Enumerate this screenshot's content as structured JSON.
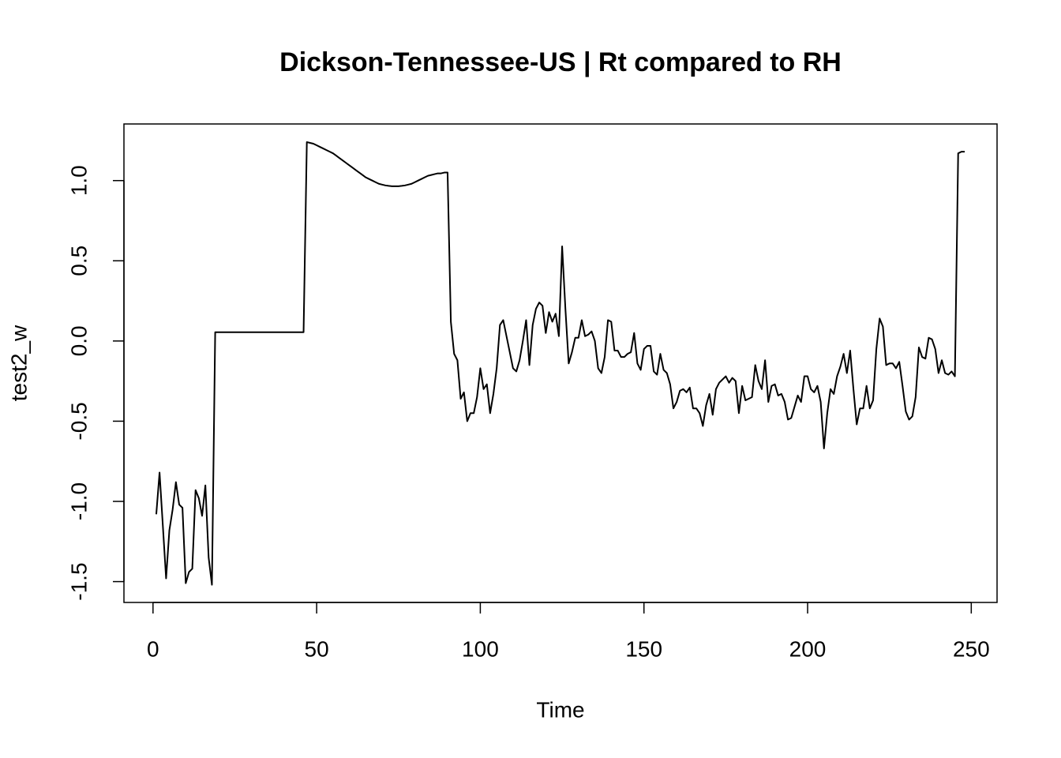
{
  "chart_data": {
    "type": "line",
    "title": "Dickson-Tennessee-US | Rt compared to RH",
    "x_label": "Time",
    "y_label": "test2_w",
    "color": "#000000",
    "x": [
      1,
      2,
      3,
      4,
      5,
      6,
      7,
      8,
      9,
      10,
      11,
      12,
      13,
      14,
      15,
      16,
      17,
      18,
      19,
      20,
      21,
      22,
      23,
      24,
      25,
      26,
      27,
      28,
      29,
      30,
      31,
      32,
      33,
      34,
      35,
      36,
      37,
      38,
      39,
      40,
      41,
      42,
      43,
      44,
      45,
      46,
      47,
      48,
      49,
      50,
      51,
      52,
      53,
      54,
      55,
      56,
      57,
      58,
      59,
      60,
      61,
      62,
      63,
      64,
      65,
      66,
      67,
      68,
      69,
      70,
      71,
      72,
      73,
      74,
      75,
      76,
      77,
      78,
      79,
      80,
      81,
      82,
      83,
      84,
      85,
      86,
      87,
      88,
      89,
      90,
      91,
      92,
      93,
      94,
      95,
      96,
      97,
      98,
      99,
      100,
      101,
      102,
      103,
      104,
      105,
      106,
      107,
      108,
      109,
      110,
      111,
      112,
      113,
      114,
      115,
      116,
      117,
      118,
      119,
      120,
      121,
      122,
      123,
      124,
      125,
      126,
      127,
      128,
      129,
      130,
      131,
      132,
      133,
      134,
      135,
      136,
      137,
      138,
      139,
      140,
      141,
      142,
      143,
      144,
      145,
      146,
      147,
      148,
      149,
      150,
      151,
      152,
      153,
      154,
      155,
      156,
      157,
      158,
      159,
      160,
      161,
      162,
      163,
      164,
      165,
      166,
      167,
      168,
      169,
      170,
      171,
      172,
      173,
      174,
      175,
      176,
      177,
      178,
      179,
      180,
      181,
      182,
      183,
      184,
      185,
      186,
      187,
      188,
      189,
      190,
      191,
      192,
      193,
      194,
      195,
      196,
      197,
      198,
      199,
      200,
      201,
      202,
      203,
      204,
      205,
      206,
      207,
      208,
      209,
      210,
      211,
      212,
      213,
      214,
      215,
      216,
      217,
      218,
      219,
      220,
      221,
      222,
      223,
      224,
      225,
      226,
      227,
      228,
      229,
      230,
      231,
      232,
      233,
      234,
      235,
      236,
      237,
      238,
      239,
      240,
      241,
      242,
      243,
      244,
      245,
      246,
      247,
      248
    ],
    "values": [
      -1.08,
      -0.82,
      -1.15,
      -1.48,
      -1.18,
      -1.05,
      -0.88,
      -1.02,
      -1.04,
      -1.51,
      -1.44,
      -1.42,
      -0.93,
      -0.98,
      -1.09,
      -0.9,
      -1.35,
      -1.52,
      0.055,
      0.055,
      0.055,
      0.055,
      0.055,
      0.055,
      0.055,
      0.055,
      0.055,
      0.055,
      0.055,
      0.055,
      0.055,
      0.055,
      0.055,
      0.055,
      0.055,
      0.055,
      0.055,
      0.055,
      0.055,
      0.055,
      0.055,
      0.055,
      0.055,
      0.055,
      0.055,
      0.055,
      1.24,
      1.235,
      1.23,
      1.22,
      1.21,
      1.2,
      1.19,
      1.18,
      1.17,
      1.155,
      1.14,
      1.125,
      1.11,
      1.095,
      1.08,
      1.065,
      1.05,
      1.035,
      1.02,
      1.01,
      1.0,
      0.99,
      0.98,
      0.975,
      0.97,
      0.967,
      0.965,
      0.965,
      0.965,
      0.967,
      0.97,
      0.975,
      0.98,
      0.99,
      1.0,
      1.01,
      1.02,
      1.03,
      1.035,
      1.04,
      1.045,
      1.045,
      1.05,
      1.05,
      0.12,
      -0.08,
      -0.12,
      -0.36,
      -0.32,
      -0.5,
      -0.45,
      -0.45,
      -0.35,
      -0.17,
      -0.3,
      -0.27,
      -0.45,
      -0.33,
      -0.17,
      0.1,
      0.13,
      0.03,
      -0.07,
      -0.17,
      -0.19,
      -0.12,
      0.0,
      0.13,
      -0.15,
      0.1,
      0.2,
      0.24,
      0.22,
      0.05,
      0.18,
      0.12,
      0.17,
      0.03,
      0.59,
      0.2,
      -0.14,
      -0.07,
      0.02,
      0.02,
      0.13,
      0.03,
      0.04,
      0.06,
      0.0,
      -0.17,
      -0.2,
      -0.1,
      0.13,
      0.12,
      -0.06,
      -0.06,
      -0.1,
      -0.1,
      -0.08,
      -0.07,
      0.05,
      -0.14,
      -0.18,
      -0.05,
      -0.03,
      -0.03,
      -0.19,
      -0.21,
      -0.08,
      -0.18,
      -0.2,
      -0.27,
      -0.42,
      -0.38,
      -0.31,
      -0.3,
      -0.32,
      -0.29,
      -0.42,
      -0.42,
      -0.45,
      -0.53,
      -0.4,
      -0.33,
      -0.46,
      -0.3,
      -0.26,
      -0.24,
      -0.22,
      -0.26,
      -0.23,
      -0.25,
      -0.45,
      -0.28,
      -0.37,
      -0.36,
      -0.35,
      -0.15,
      -0.25,
      -0.3,
      -0.12,
      -0.38,
      -0.28,
      -0.27,
      -0.34,
      -0.33,
      -0.38,
      -0.49,
      -0.48,
      -0.41,
      -0.34,
      -0.38,
      -0.22,
      -0.22,
      -0.3,
      -0.32,
      -0.28,
      -0.38,
      -0.67,
      -0.45,
      -0.3,
      -0.33,
      -0.22,
      -0.16,
      -0.08,
      -0.2,
      -0.06,
      -0.3,
      -0.52,
      -0.42,
      -0.42,
      -0.28,
      -0.42,
      -0.37,
      -0.05,
      0.14,
      0.09,
      -0.15,
      -0.14,
      -0.14,
      -0.17,
      -0.13,
      -0.28,
      -0.44,
      -0.49,
      -0.47,
      -0.35,
      -0.04,
      -0.1,
      -0.11,
      0.02,
      0.01,
      -0.05,
      -0.2,
      -0.12,
      -0.2,
      -0.21,
      -0.19,
      -0.22,
      1.17,
      1.18,
      1.18
    ],
    "xlim": [
      -8.88,
      257.88
    ],
    "ylim": [
      -1.63,
      1.353
    ],
    "xticks": [
      0,
      50,
      100,
      150,
      200,
      250
    ],
    "yticks": [
      {
        "value": -1.5,
        "label": "-1.5"
      },
      {
        "value": -1,
        "label": "-1.0"
      },
      -0.5,
      {
        "value": 0,
        "label": "0.0"
      },
      0.5,
      {
        "value": 1,
        "label": "1.0"
      }
    ]
  }
}
